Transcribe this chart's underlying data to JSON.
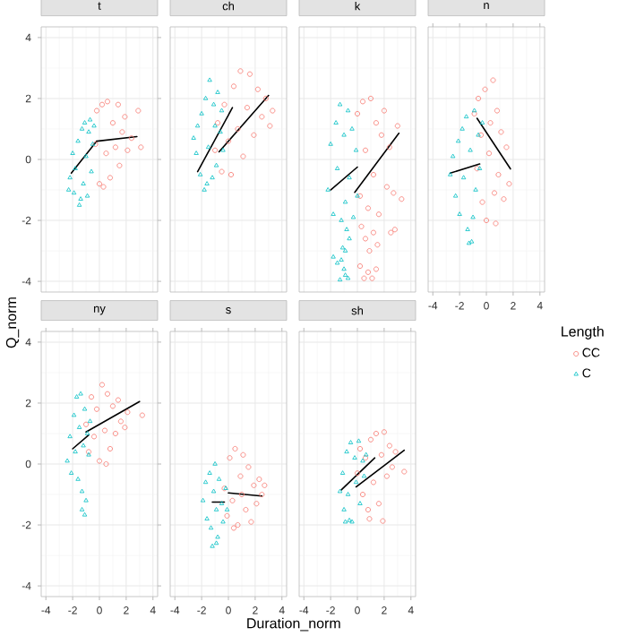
{
  "chart_data": [
    {
      "type": "scatter",
      "title": "t",
      "ylabel": "Q_norm",
      "xlim": [
        -4.35,
        4.35
      ],
      "ylim": [
        -4.35,
        4.35
      ],
      "xticks": [
        -4,
        -2,
        0,
        2,
        4
      ],
      "yticks": [
        -4,
        -2,
        0,
        2,
        4
      ],
      "grid": true,
      "tick_labels": "y",
      "series": [
        {
          "marker": "circle",
          "color": "#f8766d",
          "x": [
            -0.3,
            -0.2,
            0,
            0.2,
            0.3,
            0.5,
            0.6,
            0.8,
            1.0,
            1.2,
            1.4,
            1.5,
            1.7,
            1.9,
            2.1,
            2.4,
            2.9,
            3.1
          ],
          "values": [
            0.5,
            1.6,
            -0.8,
            1.8,
            -0.9,
            0.2,
            1.9,
            -0.6,
            1.2,
            0.4,
            1.8,
            -0.2,
            0.9,
            1.4,
            0.3,
            0.7,
            1.6,
            0.4
          ]
        },
        {
          "marker": "triangle",
          "color": "#00bfc4",
          "x": [
            -2.3,
            -2.2,
            -2.0,
            -1.9,
            -1.8,
            -1.6,
            -1.5,
            -1.3,
            -1.2,
            -1.1,
            -1.0,
            -0.9,
            -0.8,
            -0.7,
            -0.6,
            -0.5,
            -0.4,
            -1.4
          ],
          "values": [
            -1.0,
            -0.6,
            0.2,
            -1.1,
            -0.3,
            0.6,
            -1.5,
            1.0,
            -0.8,
            1.2,
            0.1,
            -1.2,
            0.9,
            1.3,
            -0.4,
            0.5,
            1.1,
            -1.3
          ]
        },
        {
          "type": "line",
          "color": "#000000",
          "x": [
            -2.1,
            -0.2
          ],
          "values": [
            -0.45,
            0.6
          ]
        },
        {
          "type": "line",
          "color": "#000000",
          "x": [
            -0.2,
            2.8
          ],
          "values": [
            0.6,
            0.75
          ]
        }
      ]
    },
    {
      "type": "scatter",
      "title": "ch",
      "xlim": [
        -4.35,
        4.35
      ],
      "ylim": [
        -4.35,
        4.35
      ],
      "xticks": [
        -4,
        -2,
        0,
        2,
        4
      ],
      "yticks": [
        -4,
        -2,
        0,
        2,
        4
      ],
      "grid": true,
      "tick_labels": false,
      "series": [
        {
          "marker": "circle",
          "color": "#f8766d",
          "x": [
            -1.0,
            -0.8,
            -0.5,
            -0.3,
            0,
            0.2,
            0.4,
            0.7,
            0.9,
            1.1,
            1.4,
            1.6,
            1.9,
            2.2,
            2.5,
            2.8,
            3.1,
            3.3
          ],
          "values": [
            0.3,
            1.2,
            -0.4,
            1.8,
            0.6,
            -0.5,
            2.4,
            1.0,
            2.9,
            0.1,
            1.7,
            2.8,
            0.8,
            2.3,
            1.4,
            2.0,
            1.1,
            1.6
          ]
        },
        {
          "marker": "triangle",
          "color": "#00bfc4",
          "x": [
            -2.6,
            -2.4,
            -2.3,
            -2.1,
            -2.0,
            -1.8,
            -1.7,
            -1.5,
            -1.4,
            -1.2,
            -1.1,
            -1.0,
            -0.9,
            -0.8,
            -0.6,
            -0.5,
            -0.4,
            -1.6
          ],
          "values": [
            0.7,
            0.2,
            1.1,
            -0.5,
            1.5,
            -1.0,
            2.0,
            0.4,
            2.6,
            -0.6,
            1.8,
            1.1,
            -0.2,
            2.2,
            0.9,
            1.6,
            0.3,
            -0.8
          ]
        },
        {
          "type": "line",
          "color": "#000000",
          "x": [
            -2.3,
            0.3
          ],
          "values": [
            -0.4,
            1.7
          ]
        },
        {
          "type": "line",
          "color": "#000000",
          "x": [
            -0.7,
            3.0
          ],
          "values": [
            0.25,
            2.1
          ]
        }
      ]
    },
    {
      "type": "scatter",
      "title": "k",
      "xlim": [
        -4.35,
        4.35
      ],
      "ylim": [
        -4.35,
        4.35
      ],
      "xticks": [
        -4,
        -2,
        0,
        2,
        4
      ],
      "yticks": [
        -4,
        -2,
        0,
        2,
        4
      ],
      "grid": true,
      "tick_labels": false,
      "series": [
        {
          "marker": "circle",
          "color": "#f8766d",
          "x": [
            0,
            0.2,
            0.4,
            0.6,
            0.8,
            1.0,
            1.2,
            1.4,
            1.6,
            1.8,
            2.0,
            2.2,
            2.4,
            2.7,
            3.0,
            3.3,
            0.3,
            0.6,
            0.9,
            1.2,
            1.5,
            0.2,
            0.5,
            0.8,
            1.1,
            1.4,
            2.5,
            2.8
          ],
          "values": [
            1.5,
            -1.2,
            1.9,
            0.3,
            -1.6,
            2.0,
            -0.5,
            1.2,
            -1.8,
            0.8,
            1.6,
            -0.9,
            0.4,
            -1.1,
            1.1,
            -1.3,
            -2.2,
            -2.6,
            -3.0,
            -2.4,
            -2.8,
            -3.5,
            -3.9,
            -3.7,
            -3.9,
            -3.6,
            -2.4,
            -2.3
          ]
        },
        {
          "marker": "triangle",
          "color": "#00bfc4",
          "x": [
            -2.2,
            -2.0,
            -1.8,
            -1.6,
            -1.5,
            -1.3,
            -1.2,
            -1.0,
            -0.9,
            -0.7,
            -0.6,
            -0.4,
            -0.3,
            -0.1,
            0,
            -0.8,
            -0.6,
            -1.1,
            -0.9,
            -1.8,
            -1.5,
            -1.2,
            -1.0,
            -0.7,
            -1.3,
            -0.9
          ],
          "values": [
            -1.0,
            0.5,
            -1.8,
            1.2,
            -0.3,
            1.8,
            -2.0,
            0.8,
            -1.4,
            1.6,
            -0.6,
            1.0,
            -1.9,
            0.3,
            -1.2,
            -2.3,
            -2.6,
            -2.9,
            -3.0,
            -3.2,
            -3.4,
            -3.3,
            -3.6,
            -3.9,
            -3.95,
            -3.8
          ]
        },
        {
          "type": "line",
          "color": "#000000",
          "x": [
            -2.0,
            0
          ],
          "values": [
            -1.0,
            -0.25
          ]
        },
        {
          "type": "line",
          "color": "#000000",
          "x": [
            -0.2,
            3.1
          ],
          "values": [
            -1.08,
            0.86
          ]
        }
      ]
    },
    {
      "type": "scatter",
      "title": "n",
      "legend_title": "Length",
      "legend": "right",
      "xlim": [
        -4.35,
        4.35
      ],
      "ylim": [
        -4.35,
        4.35
      ],
      "xticks": [
        -4,
        -2,
        0,
        2,
        4
      ],
      "yticks": [
        -4,
        -2,
        0,
        2,
        4
      ],
      "grid": true,
      "tick_labels": "x",
      "series": [
        {
          "name": "CC",
          "marker": "circle",
          "color": "#f8766d",
          "x": [
            -0.9,
            -0.7,
            -0.6,
            -0.4,
            -0.3,
            -0.1,
            0,
            0.2,
            0.3,
            0.5,
            0.6,
            0.8,
            0.9,
            1.1,
            1.3,
            1.5,
            1.7,
            0.7
          ],
          "values": [
            1.5,
            -0.3,
            2.0,
            0.8,
            -1.4,
            2.3,
            -2.0,
            0.2,
            1.2,
            2.6,
            -1.1,
            1.6,
            -0.5,
            0.9,
            -1.3,
            0.4,
            -0.8,
            -2.1
          ]
        },
        {
          "name": "C",
          "marker": "triangle",
          "color": "#00bfc4",
          "x": [
            -2.7,
            -2.5,
            -2.3,
            -2.1,
            -2.0,
            -1.8,
            -1.7,
            -1.5,
            -1.4,
            -1.2,
            -1.1,
            -0.9,
            -0.8,
            -0.6,
            -0.5,
            -0.3,
            -1.3,
            -1.0
          ],
          "values": [
            -0.5,
            0.1,
            -1.2,
            0.6,
            -1.8,
            1.0,
            -0.6,
            1.4,
            -2.3,
            0.3,
            -2.7,
            1.6,
            -1.0,
            0.8,
            -0.3,
            1.2,
            -2.75,
            -1.9
          ]
        },
        {
          "type": "line",
          "color": "#000000",
          "x": [
            -2.7,
            -0.5
          ],
          "values": [
            -0.45,
            -0.15
          ]
        },
        {
          "type": "line",
          "color": "#000000",
          "x": [
            -0.7,
            1.8
          ],
          "values": [
            1.35,
            -0.31
          ]
        }
      ]
    },
    {
      "type": "scatter",
      "title": "ny",
      "xlim": [
        -4.35,
        4.35
      ],
      "ylim": [
        -4.35,
        4.35
      ],
      "xticks": [
        -4,
        -2,
        0,
        2,
        4
      ],
      "yticks": [
        -4,
        -2,
        0,
        2,
        4
      ],
      "grid": true,
      "series": [
        {
          "marker": "circle",
          "color": "#f8766d",
          "x": [
            -1.0,
            -0.8,
            -0.6,
            -0.4,
            -0.2,
            0,
            0.2,
            0.4,
            0.6,
            0.8,
            1.0,
            1.2,
            1.4,
            1.6,
            1.9,
            2.1,
            3.2,
            0.5
          ],
          "values": [
            1.3,
            0.4,
            2.2,
            0.9,
            1.8,
            0.1,
            2.6,
            1.1,
            2.3,
            0.5,
            1.9,
            1.0,
            2.1,
            1.4,
            1.2,
            1.7,
            1.6,
            0
          ]
        },
        {
          "marker": "triangle",
          "color": "#00bfc4",
          "x": [
            -2.4,
            -2.2,
            -2.1,
            -1.9,
            -1.8,
            -1.7,
            -1.6,
            -1.5,
            -1.4,
            -1.3,
            -1.2,
            -1.1,
            -1.0,
            -0.9,
            -0.8,
            -0.7,
            -1.3,
            -1.1
          ],
          "values": [
            0.1,
            0.9,
            -0.3,
            1.6,
            0.4,
            2.2,
            -0.5,
            1.2,
            2.3,
            -0.9,
            0.6,
            1.8,
            -1.2,
            1.0,
            0.3,
            1.4,
            -1.5,
            -1.67
          ]
        },
        {
          "type": "line",
          "color": "#000000",
          "x": [
            -2.0,
            -0.8
          ],
          "values": [
            0.5,
            0.95
          ]
        },
        {
          "type": "line",
          "color": "#000000",
          "x": [
            -1.0,
            3.0
          ],
          "values": [
            1.05,
            2.05
          ]
        }
      ]
    },
    {
      "type": "scatter",
      "title": "s",
      "xlabel": "Duration_norm",
      "xlim": [
        -4.35,
        4.35
      ],
      "ylim": [
        -4.35,
        4.35
      ],
      "xticks": [
        -4,
        -2,
        0,
        2,
        4
      ],
      "yticks": [
        -4,
        -2,
        0,
        2,
        4
      ],
      "grid": true,
      "tick_labels": "x",
      "series": [
        {
          "marker": "circle",
          "color": "#f8766d",
          "x": [
            -0.3,
            -0.1,
            0.1,
            0.3,
            0.5,
            0.7,
            0.9,
            1.1,
            1.3,
            1.5,
            1.7,
            1.9,
            2.1,
            2.3,
            2.5,
            2.7,
            0.4,
            1.0
          ],
          "values": [
            -0.8,
            -1.7,
            0.2,
            -1.2,
            0.5,
            -2.0,
            -0.4,
            0.3,
            -1.5,
            -0.1,
            -1.9,
            -0.7,
            -1.3,
            -0.5,
            -1.0,
            -0.7,
            -2.1,
            -1.0
          ]
        },
        {
          "marker": "triangle",
          "color": "#00bfc4",
          "x": [
            -1.9,
            -1.7,
            -1.6,
            -1.4,
            -1.3,
            -1.1,
            -1.0,
            -0.9,
            -0.8,
            -0.7,
            -0.5,
            -0.4,
            -0.2,
            -0.1,
            -1.2,
            -0.9
          ],
          "values": [
            -1.2,
            -0.6,
            -1.8,
            -0.3,
            -2.1,
            -0.9,
            0,
            -1.5,
            -2.4,
            -0.5,
            -1.3,
            -1.9,
            -0.8,
            -1.5,
            -2.7,
            -2.6
          ]
        },
        {
          "type": "line",
          "color": "#000000",
          "x": [
            -1.2,
            -0.3
          ],
          "values": [
            -1.25,
            -1.25
          ]
        },
        {
          "type": "line",
          "color": "#000000",
          "x": [
            0,
            2.5
          ],
          "values": [
            -0.95,
            -1.05
          ]
        }
      ]
    },
    {
      "type": "scatter",
      "title": "sh",
      "xlim": [
        -4.35,
        4.35
      ],
      "ylim": [
        -4.35,
        4.35
      ],
      "xticks": [
        -4,
        -2,
        0,
        2,
        4
      ],
      "yticks": [
        -4,
        -2,
        0,
        2,
        4
      ],
      "grid": true,
      "tick_labels": "x",
      "series": [
        {
          "marker": "circle",
          "color": "#f8766d",
          "x": [
            0,
            0.2,
            0.4,
            0.6,
            0.8,
            1.0,
            1.2,
            1.4,
            1.6,
            1.8,
            2.0,
            2.2,
            2.4,
            2.6,
            2.85,
            3.5,
            0.9,
            1.9
          ],
          "values": [
            -0.3,
            0.5,
            -1.0,
            0.2,
            -1.5,
            0.8,
            -0.6,
            1.0,
            -1.3,
            0.3,
            1.05,
            -0.4,
            0.6,
            -0.1,
            0.4,
            -0.25,
            -1.8,
            -1.87
          ]
        },
        {
          "marker": "triangle",
          "color": "#00bfc4",
          "x": [
            -1.3,
            -1.1,
            -1.0,
            -0.8,
            -0.7,
            -0.5,
            -0.4,
            -0.2,
            -0.1,
            0.1,
            0.2,
            0.4,
            0.5,
            0.65,
            -0.6,
            -0.9
          ],
          "values": [
            -0.9,
            -0.3,
            -1.5,
            0.4,
            -1.0,
            0.7,
            -1.9,
            0.2,
            -0.6,
            0.75,
            -1.3,
            0.1,
            -0.4,
            0.3,
            -1.85,
            -1.9
          ]
        },
        {
          "type": "line",
          "color": "#000000",
          "x": [
            -1.2,
            1.3
          ],
          "values": [
            -0.85,
            0.2
          ]
        },
        {
          "type": "line",
          "color": "#000000",
          "x": [
            -0.1,
            3.5
          ],
          "values": [
            -0.75,
            0.45
          ]
        }
      ]
    }
  ]
}
